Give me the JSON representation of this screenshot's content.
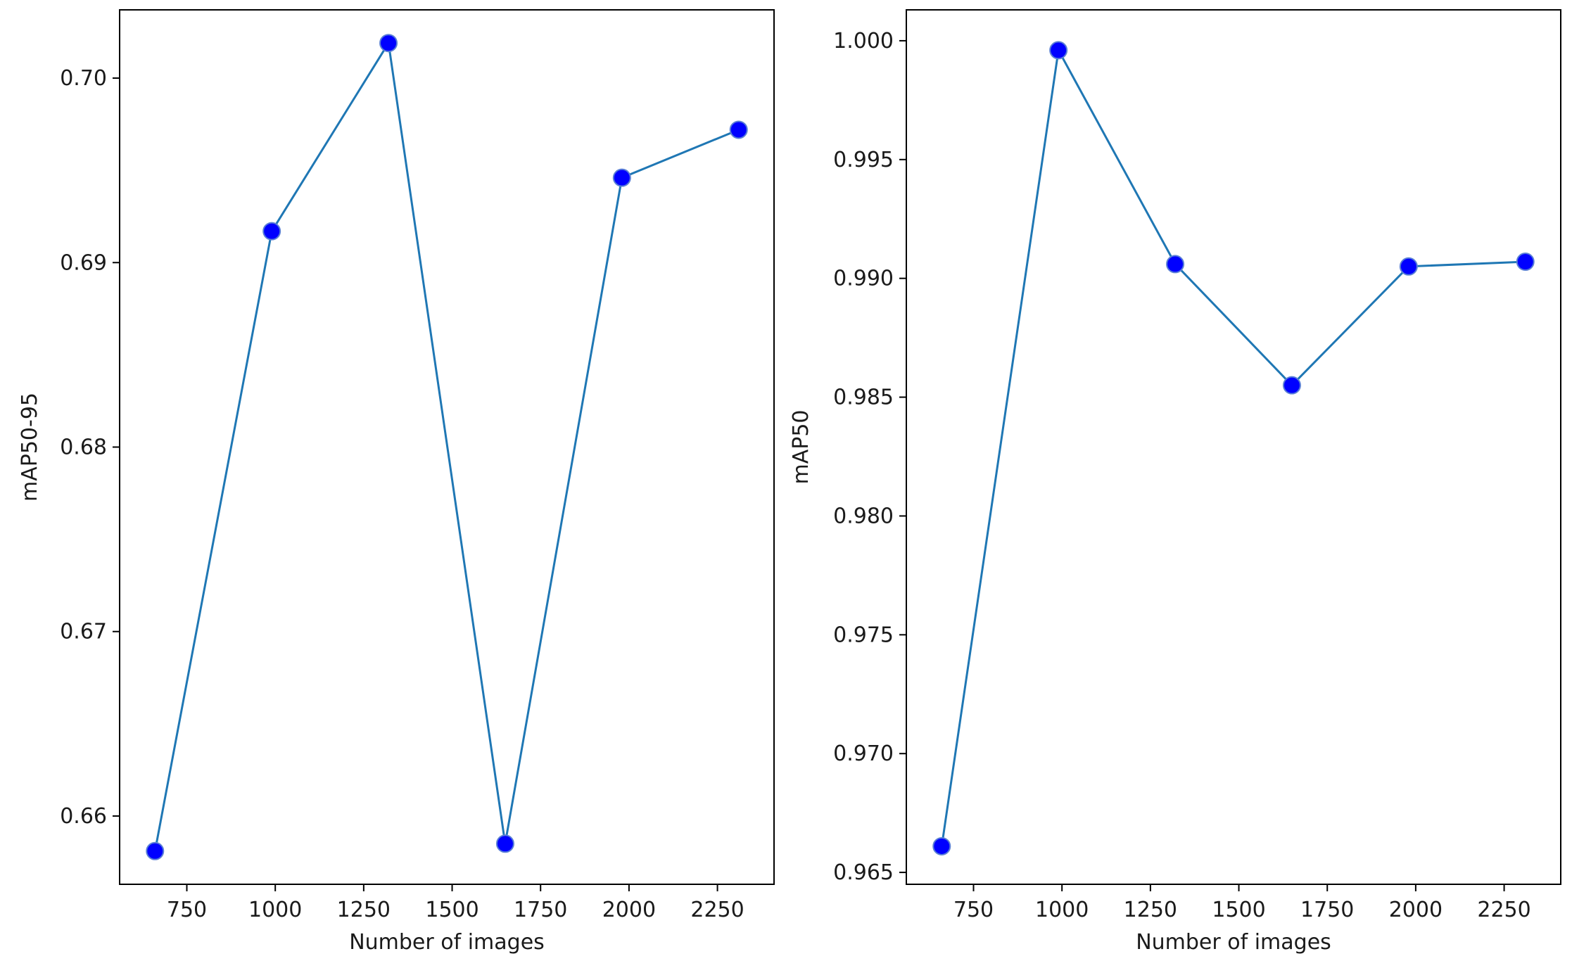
{
  "chart_data": [
    {
      "type": "line",
      "xlabel": "Number of images",
      "ylabel": "mAP50-95",
      "x": [
        660,
        990,
        1320,
        1650,
        1980,
        2310
      ],
      "series": [
        {
          "values": [
            0.6581,
            0.6917,
            0.7019,
            0.6585,
            0.6946,
            0.6972
          ]
        }
      ],
      "xlim": [
        560,
        2410
      ],
      "ylim": [
        0.6563,
        0.7037
      ],
      "xticks": [
        750,
        1000,
        1250,
        1500,
        1750,
        2000,
        2250
      ],
      "xtick_labels": [
        "750",
        "1000",
        "1250",
        "1500",
        "1750",
        "2000",
        "2250"
      ],
      "yticks": [
        0.66,
        0.67,
        0.68,
        0.69,
        0.7
      ],
      "ytick_labels": [
        "0.66",
        "0.67",
        "0.68",
        "0.69",
        "0.70"
      ],
      "grid": false,
      "line_color": "#1f77b4",
      "marker_color": "#0000ff"
    },
    {
      "type": "line",
      "xlabel": "Number of images",
      "ylabel": "mAP50",
      "x": [
        660,
        990,
        1320,
        1650,
        1980,
        2310
      ],
      "series": [
        {
          "values": [
            0.9661,
            0.9996,
            0.9906,
            0.9855,
            0.9905,
            0.9907
          ]
        }
      ],
      "xlim": [
        560,
        2410
      ],
      "ylim": [
        0.9645,
        1.0013
      ],
      "xticks": [
        750,
        1000,
        1250,
        1500,
        1750,
        2000,
        2250
      ],
      "xtick_labels": [
        "750",
        "1000",
        "1250",
        "1500",
        "1750",
        "2000",
        "2250"
      ],
      "yticks": [
        0.965,
        0.97,
        0.975,
        0.98,
        0.985,
        0.99,
        0.995,
        1.0
      ],
      "ytick_labels": [
        "0.965",
        "0.970",
        "0.975",
        "0.980",
        "0.985",
        "0.990",
        "0.995",
        "1.000"
      ],
      "grid": false,
      "line_color": "#1f77b4",
      "marker_color": "#0000ff"
    }
  ]
}
